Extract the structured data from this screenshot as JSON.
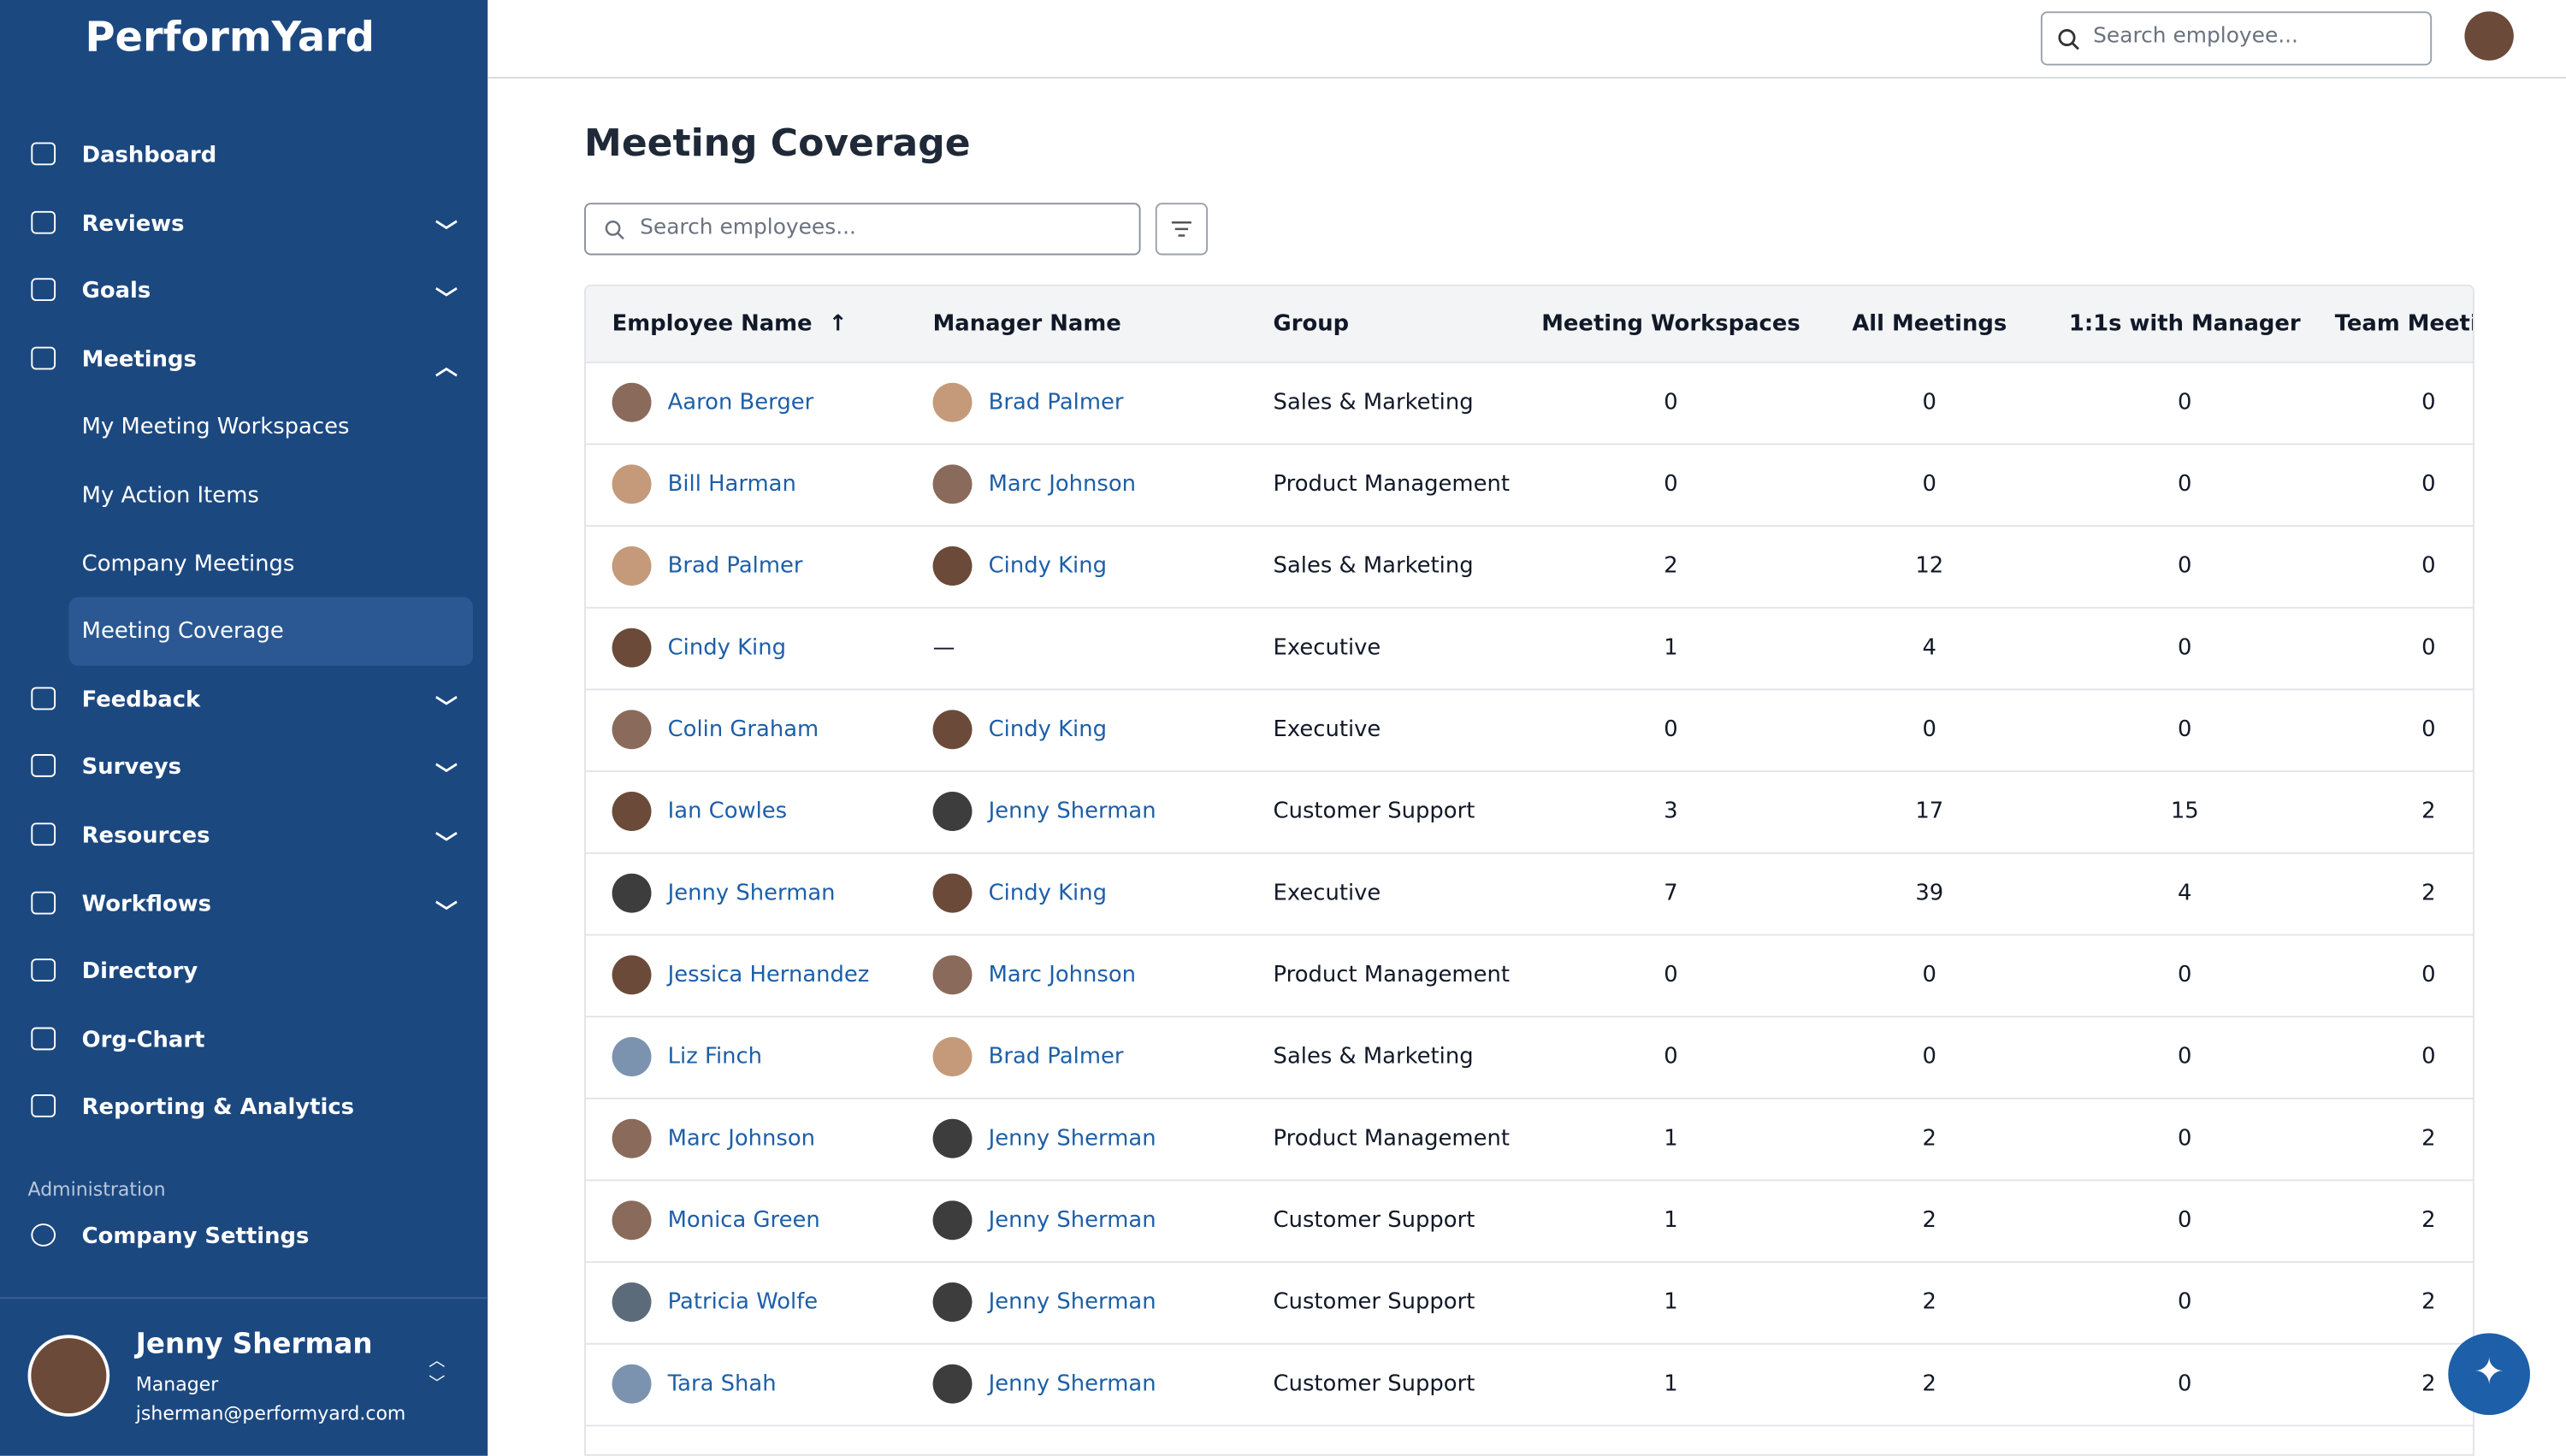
{
  "brand": "PerformYard",
  "top_search_placeholder": "Search employee...",
  "nav": [
    {
      "label": "Dashboard"
    },
    {
      "label": "Reviews",
      "expanded": false
    },
    {
      "label": "Goals",
      "expanded": false
    },
    {
      "label": "Meetings",
      "expanded": true,
      "children": [
        "My Meeting Workspaces",
        "My Action Items",
        "Company Meetings",
        "Meeting Coverage"
      ],
      "active_child": 3
    },
    {
      "label": "Feedback",
      "expanded": false
    },
    {
      "label": "Surveys",
      "expanded": false
    },
    {
      "label": "Resources",
      "expanded": false
    },
    {
      "label": "Workflows",
      "expanded": false
    },
    {
      "label": "Directory"
    },
    {
      "label": "Org-Chart"
    },
    {
      "label": "Reporting & Analytics"
    }
  ],
  "admin_heading": "Administration",
  "admin_nav": [
    "Company Settings"
  ],
  "user": {
    "name": "Jenny Sherman",
    "role": "Manager",
    "email": "jsherman@performyard.com"
  },
  "page_title": "Meeting Coverage",
  "table_search_placeholder": "Search employees...",
  "table": {
    "columns": [
      "Employee Name",
      "Manager Name",
      "Group",
      "Meeting Workspaces",
      "All Meetings",
      "1:1s with Manager",
      "Team Meetings"
    ],
    "rows": [
      [
        "Aaron Berger",
        "Brad Palmer",
        "Sales & Marketing",
        0,
        0,
        0,
        0
      ],
      [
        "Bill Harman",
        "Marc Johnson",
        "Product Management",
        0,
        0,
        0,
        0
      ],
      [
        "Brad Palmer",
        "Cindy King",
        "Sales & Marketing",
        2,
        12,
        0,
        0
      ],
      [
        "Cindy King",
        "—",
        "Executive",
        1,
        4,
        0,
        0
      ],
      [
        "Colin Graham",
        "Cindy King",
        "Executive",
        0,
        0,
        0,
        0
      ],
      [
        "Ian Cowles",
        "Jenny Sherman",
        "Customer Support",
        3,
        17,
        15,
        2
      ],
      [
        "Jenny Sherman",
        "Cindy King",
        "Executive",
        7,
        39,
        4,
        2
      ],
      [
        "Jessica Hernandez",
        "Marc Johnson",
        "Product Management",
        0,
        0,
        0,
        0
      ],
      [
        "Liz Finch",
        "Brad Palmer",
        "Sales & Marketing",
        0,
        0,
        0,
        0
      ],
      [
        "Marc Johnson",
        "Jenny Sherman",
        "Product Management",
        1,
        2,
        0,
        2
      ],
      [
        "Monica Green",
        "Jenny Sherman",
        "Customer Support",
        1,
        2,
        0,
        2
      ],
      [
        "Patricia Wolfe",
        "Jenny Sherman",
        "Customer Support",
        1,
        2,
        0,
        2
      ],
      [
        "Tara Shah",
        "Jenny Sherman",
        "Customer Support",
        1,
        2,
        0,
        2
      ]
    ]
  }
}
